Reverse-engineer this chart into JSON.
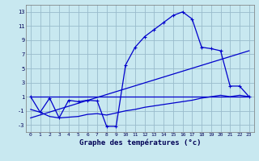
{
  "xlabel": "Graphe des températures (°c)",
  "background_color": "#c8e8f0",
  "grid_color": "#99bbcc",
  "line_color": "#0000cc",
  "x_ticks": [
    0,
    1,
    2,
    3,
    4,
    5,
    6,
    7,
    8,
    9,
    10,
    11,
    12,
    13,
    14,
    15,
    16,
    17,
    18,
    19,
    20,
    21,
    22,
    23
  ],
  "y_ticks": [
    -3,
    -1,
    1,
    3,
    5,
    7,
    9,
    11,
    13
  ],
  "ylim": [
    -4.0,
    14.0
  ],
  "xlim": [
    -0.5,
    23.5
  ],
  "series1_x": [
    0,
    1,
    2,
    3,
    4,
    5,
    6,
    7,
    8,
    9,
    10,
    11,
    12,
    13,
    14,
    15,
    16,
    17,
    18,
    19,
    20,
    21,
    22,
    23
  ],
  "series1_y": [
    1.0,
    -1.2,
    0.8,
    -2.0,
    0.5,
    0.3,
    0.5,
    0.4,
    -3.2,
    -3.2,
    5.5,
    8.0,
    9.5,
    10.5,
    11.5,
    12.5,
    13.0,
    12.0,
    8.0,
    7.8,
    7.5,
    2.5,
    2.5,
    1.0
  ],
  "series2_x": [
    0,
    1,
    2,
    3,
    4,
    5,
    6,
    7,
    8,
    9,
    10,
    11,
    12,
    13,
    14,
    15,
    16,
    17,
    18,
    19,
    20,
    21,
    22,
    23
  ],
  "series2_y": [
    -0.8,
    -1.2,
    -1.8,
    -2.0,
    -1.9,
    -1.8,
    -1.5,
    -1.4,
    -1.6,
    -1.3,
    -1.0,
    -0.8,
    -0.5,
    -0.3,
    -0.1,
    0.1,
    0.3,
    0.5,
    0.8,
    1.0,
    1.2,
    1.0,
    1.2,
    1.0
  ],
  "series3_x": [
    0,
    23
  ],
  "series3_y": [
    1.0,
    1.0
  ],
  "series4_x": [
    0,
    23
  ],
  "series4_y": [
    -2.0,
    7.5
  ]
}
